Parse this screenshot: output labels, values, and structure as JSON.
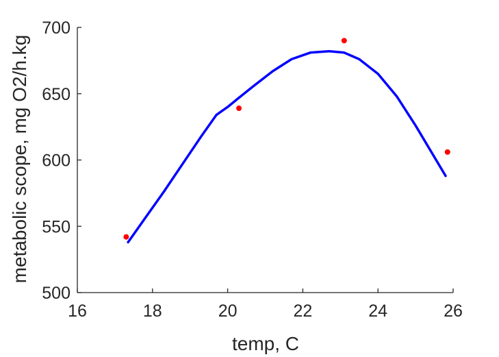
{
  "chart_data": {
    "type": "scatter",
    "title": "",
    "xlabel": "temp, C",
    "ylabel": "metabolic scope, mg O2/h.kg",
    "xlim": [
      16,
      26
    ],
    "ylim": [
      500,
      700
    ],
    "xticks": [
      "16",
      "18",
      "20",
      "22",
      "24",
      "26"
    ],
    "yticks": [
      "500",
      "550",
      "600",
      "650",
      "700"
    ],
    "grid": false,
    "legend": "none",
    "series": [
      {
        "kind": "points",
        "color": "#ff0000",
        "x": [
          17.3,
          20.3,
          23.1,
          25.85
        ],
        "y": [
          542,
          639,
          690,
          606
        ]
      },
      {
        "kind": "fitted-curve",
        "color": "#0000ff",
        "x": [
          17.35,
          17.8,
          18.3,
          18.8,
          19.3,
          19.7,
          20.0,
          20.3,
          20.7,
          21.2,
          21.7,
          22.2,
          22.7,
          23.1,
          23.5,
          24.0,
          24.5,
          25.0,
          25.4,
          25.8
        ],
        "y": [
          538,
          556,
          576,
          597,
          618,
          634,
          640,
          647,
          656,
          667,
          676,
          681,
          682,
          681,
          676,
          665,
          648,
          626,
          607,
          588
        ]
      }
    ]
  }
}
